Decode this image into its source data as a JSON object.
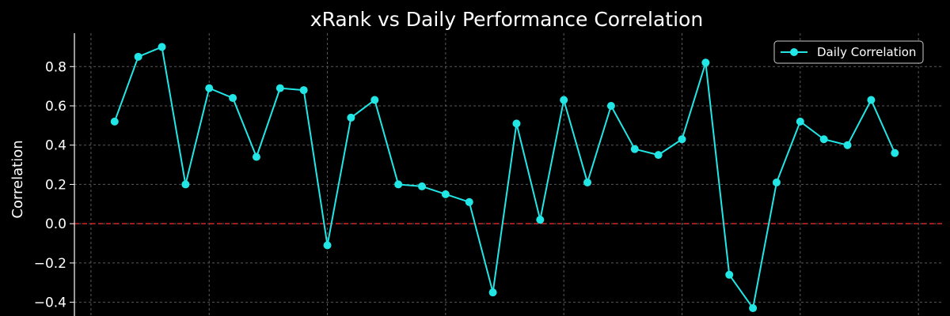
{
  "chart_data": {
    "type": "line",
    "title": "xRank vs Daily Performance Correlation",
    "xlabel": "",
    "ylabel": "Correlation",
    "ylim": [
      -0.47,
      0.97
    ],
    "yticks": [
      -0.4,
      -0.2,
      0.0,
      0.2,
      0.4,
      0.6,
      0.8
    ],
    "ytick_labels": [
      "−0.4",
      "−0.2",
      "0.0",
      "0.2",
      "0.4",
      "0.6",
      "0.8"
    ],
    "grid": true,
    "legend_position": "top-right",
    "reference_line": {
      "y": 0.0,
      "color": "#d62728",
      "style": "dashed"
    },
    "series": [
      {
        "name": "Daily Correlation",
        "color": "#22e6e6",
        "values": [
          0.52,
          0.85,
          0.9,
          0.2,
          0.69,
          0.64,
          0.34,
          0.69,
          0.68,
          -0.11,
          0.54,
          0.63,
          0.2,
          0.19,
          0.15,
          0.11,
          -0.35,
          0.51,
          0.02,
          0.63,
          0.21,
          0.6,
          0.38,
          0.35,
          0.43,
          0.82,
          -0.26,
          -0.43,
          0.21,
          0.52,
          0.43,
          0.4,
          0.63,
          0.36
        ]
      }
    ]
  }
}
